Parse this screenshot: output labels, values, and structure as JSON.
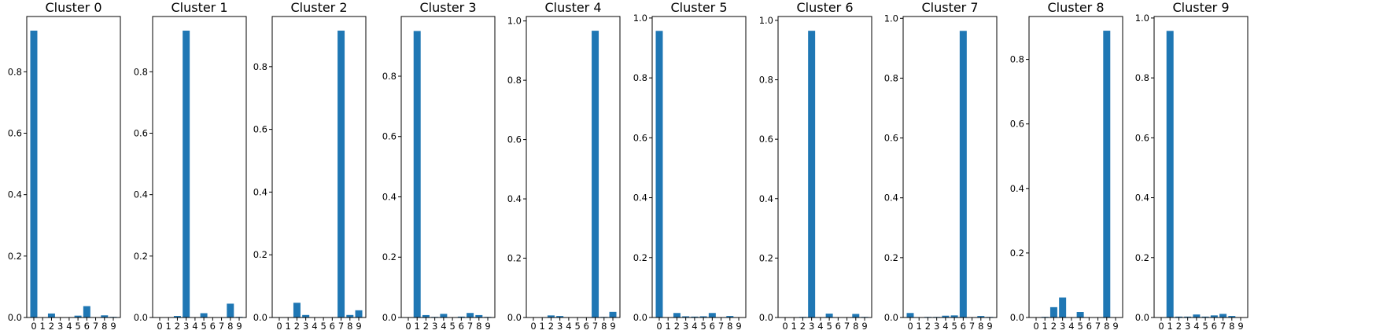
{
  "figure": {
    "bar_color": "#1f77b4",
    "background": "#ffffff",
    "axis_color": "#000000"
  },
  "chart_data": [
    {
      "type": "bar",
      "title": "Cluster 0",
      "categories": [
        "0",
        "1",
        "2",
        "3",
        "4",
        "5",
        "6",
        "7",
        "8",
        "9"
      ],
      "values": [
        0.934,
        0.0,
        0.013,
        0.0,
        0.0,
        0.006,
        0.037,
        0.0,
        0.007,
        0.002
      ],
      "xlabel": "",
      "ylabel": "",
      "ylim": [
        0,
        0.98
      ],
      "yticks": [
        0.0,
        0.2,
        0.4,
        0.6,
        0.8
      ],
      "ytick_labels": [
        "0.0",
        "0.2",
        "0.4",
        "0.6",
        "0.8"
      ],
      "grid": false
    },
    {
      "type": "bar",
      "title": "Cluster 1",
      "categories": [
        "0",
        "1",
        "2",
        "3",
        "4",
        "5",
        "6",
        "7",
        "8",
        "9"
      ],
      "values": [
        0.0,
        0.0,
        0.005,
        0.934,
        0.0,
        0.014,
        0.0,
        0.0,
        0.045,
        0.002
      ],
      "xlabel": "",
      "ylabel": "",
      "ylim": [
        0,
        0.98
      ],
      "yticks": [
        0.0,
        0.2,
        0.4,
        0.6,
        0.8
      ],
      "ytick_labels": [
        "0.0",
        "0.2",
        "0.4",
        "0.6",
        "0.8"
      ],
      "grid": false
    },
    {
      "type": "bar",
      "title": "Cluster 2",
      "categories": [
        "0",
        "1",
        "2",
        "3",
        "4",
        "5",
        "6",
        "7",
        "8",
        "9"
      ],
      "values": [
        0.0,
        0.0,
        0.047,
        0.008,
        0.0,
        0.0,
        0.0,
        0.915,
        0.008,
        0.023
      ],
      "xlabel": "",
      "ylabel": "",
      "ylim": [
        0,
        0.96
      ],
      "yticks": [
        0.0,
        0.2,
        0.4,
        0.6,
        0.8
      ],
      "ytick_labels": [
        "0.0",
        "0.2",
        "0.4",
        "0.6",
        "0.8"
      ],
      "grid": false
    },
    {
      "type": "bar",
      "title": "Cluster 3",
      "categories": [
        "0",
        "1",
        "2",
        "3",
        "4",
        "5",
        "6",
        "7",
        "8",
        "9"
      ],
      "values": [
        0.0,
        0.95,
        0.008,
        0.002,
        0.012,
        0.0,
        0.003,
        0.015,
        0.008,
        0.002
      ],
      "xlabel": "",
      "ylabel": "",
      "ylim": [
        0,
        0.998
      ],
      "yticks": [
        0.0,
        0.2,
        0.4,
        0.6,
        0.8
      ],
      "ytick_labels": [
        "0.0",
        "0.2",
        "0.4",
        "0.6",
        "0.8"
      ],
      "grid": false
    },
    {
      "type": "bar",
      "title": "Cluster 4",
      "categories": [
        "0",
        "1",
        "2",
        "3",
        "4",
        "5",
        "6",
        "7",
        "8",
        "9"
      ],
      "values": [
        0.0,
        0.0,
        0.007,
        0.005,
        0.0,
        0.0,
        0.0,
        0.967,
        0.002,
        0.019
      ],
      "xlabel": "",
      "ylabel": "",
      "ylim": [
        0,
        1.015
      ],
      "yticks": [
        0.0,
        0.2,
        0.4,
        0.6,
        0.8,
        1.0
      ],
      "ytick_labels": [
        "0.0",
        "0.2",
        "0.4",
        "0.6",
        "0.8",
        "1.0"
      ],
      "grid": false
    },
    {
      "type": "bar",
      "title": "Cluster 5",
      "categories": [
        "0",
        "1",
        "2",
        "3",
        "4",
        "5",
        "6",
        "7",
        "8",
        "9"
      ],
      "values": [
        0.957,
        0.0,
        0.015,
        0.004,
        0.003,
        0.004,
        0.015,
        0.0,
        0.005,
        0.0
      ],
      "xlabel": "",
      "ylabel": "",
      "ylim": [
        0,
        1.005
      ],
      "yticks": [
        0.0,
        0.2,
        0.4,
        0.6,
        0.8,
        1.0
      ],
      "ytick_labels": [
        "0.0",
        "0.2",
        "0.4",
        "0.6",
        "0.8",
        "1.0"
      ],
      "grid": false
    },
    {
      "type": "bar",
      "title": "Cluster 6",
      "categories": [
        "0",
        "1",
        "2",
        "3",
        "4",
        "5",
        "6",
        "7",
        "8",
        "9"
      ],
      "values": [
        0.0,
        0.0,
        0.002,
        0.965,
        0.0,
        0.013,
        0.0,
        0.0,
        0.012,
        0.002
      ],
      "xlabel": "",
      "ylabel": "",
      "ylim": [
        0,
        1.013
      ],
      "yticks": [
        0.0,
        0.2,
        0.4,
        0.6,
        0.8,
        1.0
      ],
      "ytick_labels": [
        "0.0",
        "0.2",
        "0.4",
        "0.6",
        "0.8",
        "1.0"
      ],
      "grid": false
    },
    {
      "type": "bar",
      "title": "Cluster 7",
      "categories": [
        "0",
        "1",
        "2",
        "3",
        "4",
        "5",
        "6",
        "7",
        "8",
        "9"
      ],
      "values": [
        0.015,
        0.0,
        0.002,
        0.002,
        0.006,
        0.007,
        0.958,
        0.0,
        0.005,
        0.002
      ],
      "xlabel": "",
      "ylabel": "",
      "ylim": [
        0,
        1.006
      ],
      "yticks": [
        0.0,
        0.2,
        0.4,
        0.6,
        0.8,
        1.0
      ],
      "ytick_labels": [
        "0.0",
        "0.2",
        "0.4",
        "0.6",
        "0.8",
        "1.0"
      ],
      "grid": false
    },
    {
      "type": "bar",
      "title": "Cluster 8",
      "categories": [
        "0",
        "1",
        "2",
        "3",
        "4",
        "5",
        "6",
        "7",
        "8",
        "9"
      ],
      "values": [
        0.0,
        0.002,
        0.032,
        0.062,
        0.0,
        0.017,
        0.0,
        0.0,
        0.889,
        0.0
      ],
      "xlabel": "",
      "ylabel": "",
      "ylim": [
        0,
        0.933
      ],
      "yticks": [
        0.0,
        0.2,
        0.4,
        0.6,
        0.8
      ],
      "ytick_labels": [
        "0.0",
        "0.2",
        "0.4",
        "0.6",
        "0.8"
      ],
      "grid": false
    },
    {
      "type": "bar",
      "title": "Cluster 9",
      "categories": [
        "0",
        "1",
        "2",
        "3",
        "4",
        "5",
        "6",
        "7",
        "8",
        "9"
      ],
      "values": [
        0.0,
        0.957,
        0.003,
        0.003,
        0.01,
        0.003,
        0.007,
        0.012,
        0.005,
        0.0
      ],
      "xlabel": "",
      "ylabel": "",
      "ylim": [
        0,
        1.005
      ],
      "yticks": [
        0.0,
        0.2,
        0.4,
        0.6,
        0.8,
        1.0
      ],
      "ytick_labels": [
        "0.0",
        "0.2",
        "0.4",
        "0.6",
        "0.8",
        "1.0"
      ],
      "grid": false
    }
  ]
}
